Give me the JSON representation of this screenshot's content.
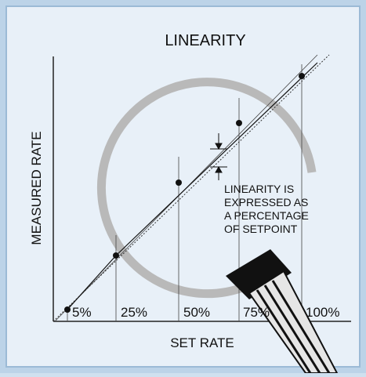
{
  "title": "LINEARITY",
  "y_axis_label": "MEASURED RATE",
  "x_axis_label": "SET RATE",
  "x_labels": [
    "5%",
    "25%",
    "50%",
    "75%",
    "100%"
  ],
  "annotation": {
    "lines": [
      "LINEARITY IS",
      "EXPRESSED AS",
      "A PERCENTAGE",
      "OF SETPOINT"
    ]
  }
}
